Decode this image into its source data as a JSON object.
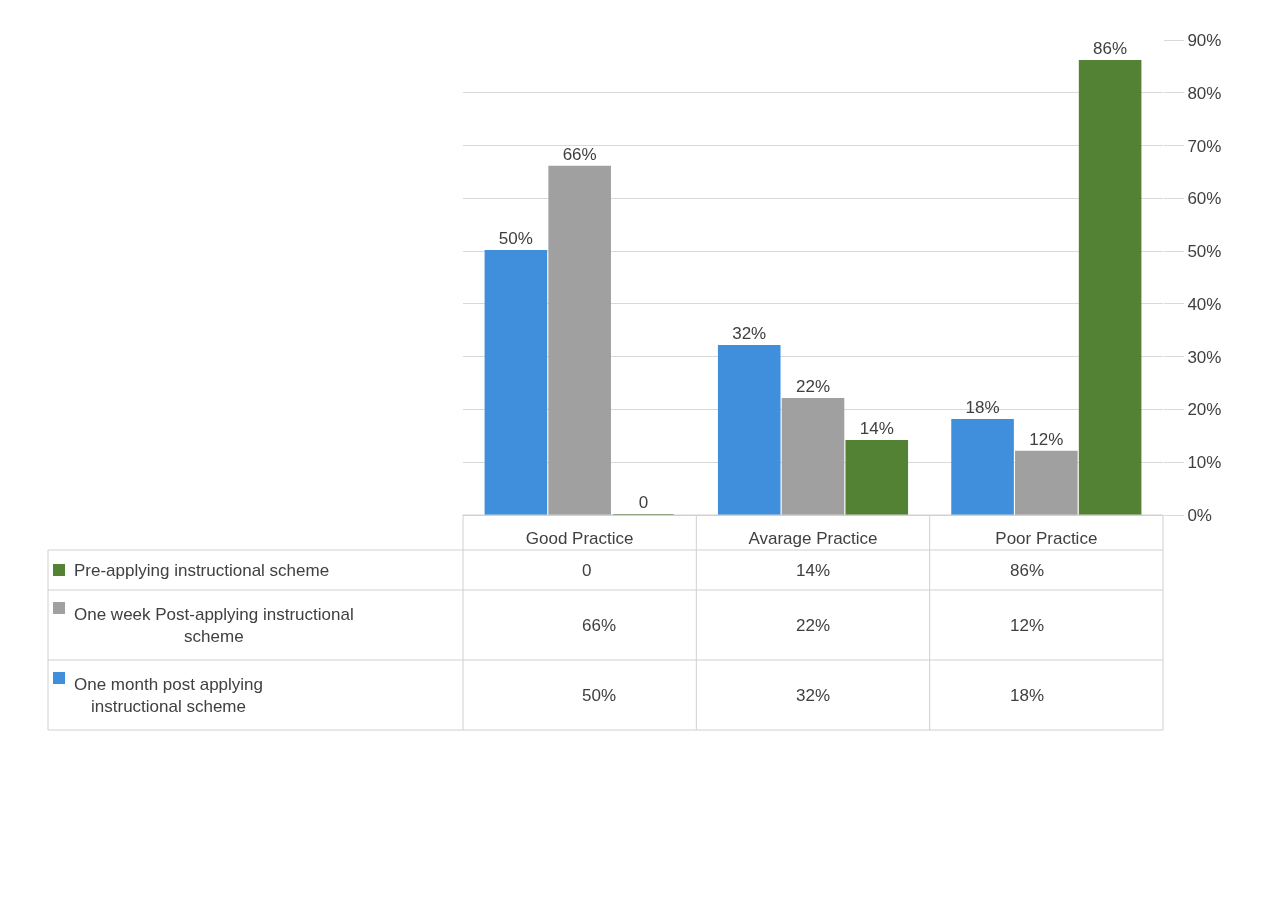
{
  "chart_data": {
    "type": "bar",
    "categories": [
      "Good Practice",
      "Avarage Practice",
      "Poor Practice"
    ],
    "series": [
      {
        "name": "One month post applying instructional scheme",
        "color": "#3f8fdc",
        "values": [
          50,
          32,
          18
        ],
        "value_labels": [
          "50%",
          "32%",
          "18%"
        ]
      },
      {
        "name": "One week Post-applying instructional scheme",
        "color": "#a0a0a0",
        "values": [
          66,
          22,
          12
        ],
        "value_labels": [
          "66%",
          "22%",
          "12%"
        ]
      },
      {
        "name": "Pre-applying instructional scheme",
        "color": "#548235",
        "values": [
          0,
          14,
          86
        ],
        "value_labels": [
          "0",
          "14%",
          "86%"
        ]
      }
    ],
    "ylim": [
      0,
      90
    ],
    "yticks": [
      {
        "value": 0,
        "label": "0%"
      },
      {
        "value": 10,
        "label": "10%"
      },
      {
        "value": 20,
        "label": "20%"
      },
      {
        "value": 30,
        "label": "30%"
      },
      {
        "value": 40,
        "label": "40%"
      },
      {
        "value": 50,
        "label": "50%"
      },
      {
        "value": 60,
        "label": "60%"
      },
      {
        "value": 70,
        "label": "70%"
      },
      {
        "value": 80,
        "label": "80%"
      },
      {
        "value": 90,
        "label": "90%"
      }
    ],
    "grid": "y",
    "legend": "bottom"
  }
}
